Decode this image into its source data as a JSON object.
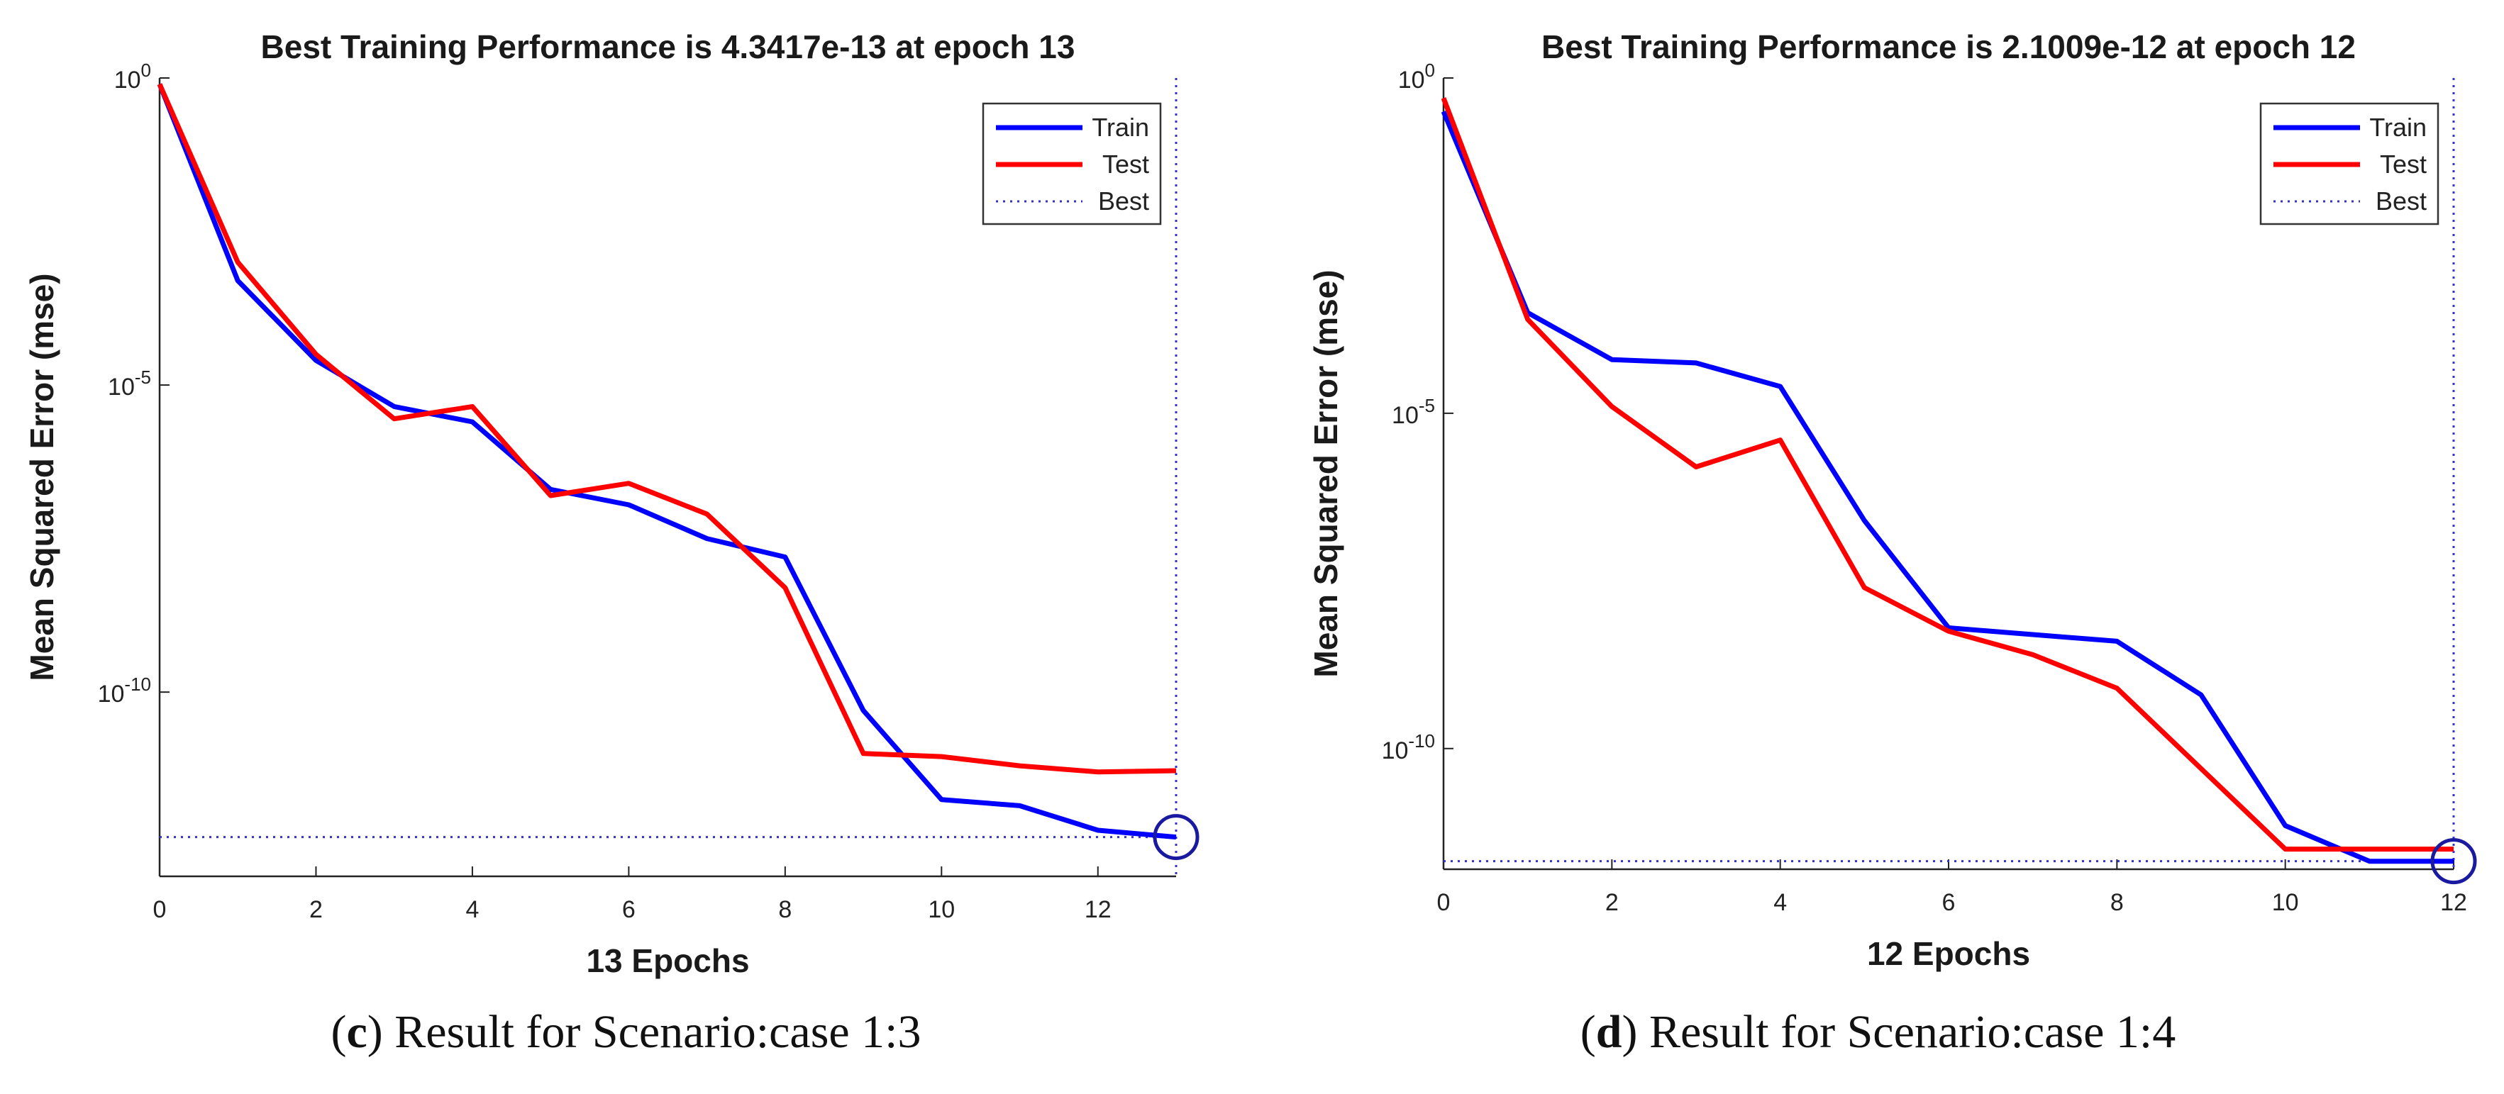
{
  "chart_data": [
    {
      "type": "line",
      "id": "c",
      "title": "Best Training Performance is 4.3417e-13 at epoch 13",
      "xlabel": "13 Epochs",
      "ylabel": "Mean Squared Error  (mse)",
      "yscale": "log",
      "xlim": [
        0,
        13
      ],
      "ylim_log10": [
        -13,
        0
      ],
      "xticks": [
        0,
        2,
        4,
        6,
        8,
        10,
        12
      ],
      "yticks": [
        {
          "label_base": "10",
          "label_exp": "0",
          "log10": 0
        },
        {
          "label_base": "10",
          "label_exp": "-5",
          "log10": -5
        },
        {
          "label_base": "10",
          "label_exp": "-10",
          "log10": -10
        }
      ],
      "series": [
        {
          "name": "Train",
          "color": "#0000ff",
          "x": [
            0,
            1,
            2,
            3,
            4,
            5,
            6,
            7,
            8,
            9,
            10,
            11,
            12,
            13
          ],
          "log10_values": [
            -0.1,
            -3.3,
            -4.6,
            -5.35,
            -5.6,
            -6.7,
            -6.95,
            -7.5,
            -7.8,
            -10.3,
            -11.75,
            -11.85,
            -12.25,
            -12.36
          ]
        },
        {
          "name": "Test",
          "color": "#ff0000",
          "x": [
            0,
            1,
            2,
            3,
            4,
            5,
            6,
            7,
            8,
            9,
            10,
            11,
            12,
            13
          ],
          "log10_values": [
            -0.1,
            -3.0,
            -4.5,
            -5.55,
            -5.35,
            -6.8,
            -6.6,
            -7.1,
            -8.3,
            -11.0,
            -11.05,
            -11.2,
            -11.3,
            -11.28
          ]
        },
        {
          "name": "Best",
          "color": "#3333cc",
          "style": "dotted",
          "best_epoch": 13,
          "best_log10": -12.36
        }
      ],
      "legend": {
        "entries": [
          "Train",
          "Test",
          "Best"
        ],
        "placement": "top-right"
      },
      "caption": {
        "letter": "c",
        "text": ") Result for Scenario:case 1:3"
      }
    },
    {
      "type": "line",
      "id": "d",
      "title": "Best Training Performance is 2.1009e-12 at epoch 12",
      "xlabel": "12 Epochs",
      "ylabel": "Mean Squared Error  (mse)",
      "yscale": "log",
      "xlim": [
        0,
        12
      ],
      "ylim_log10": [
        -11.8,
        0
      ],
      "xticks": [
        0,
        2,
        4,
        6,
        8,
        10,
        12
      ],
      "yticks": [
        {
          "label_base": "10",
          "label_exp": "0",
          "log10": 0
        },
        {
          "label_base": "10",
          "label_exp": "-5",
          "log10": -5
        },
        {
          "label_base": "10",
          "label_exp": "-10",
          "log10": -10
        }
      ],
      "series": [
        {
          "name": "Train",
          "color": "#0000ff",
          "x": [
            0,
            1,
            2,
            3,
            4,
            5,
            6,
            7,
            8,
            9,
            10,
            11,
            12
          ],
          "log10_values": [
            -0.5,
            -3.5,
            -4.2,
            -4.25,
            -4.6,
            -6.6,
            -8.2,
            -8.3,
            -8.4,
            -9.2,
            -11.15,
            -11.68,
            -11.68
          ]
        },
        {
          "name": "Test",
          "color": "#ff0000",
          "x": [
            0,
            1,
            2,
            3,
            4,
            5,
            6,
            7,
            8,
            9,
            10,
            11,
            12
          ],
          "log10_values": [
            -0.3,
            -3.6,
            -4.9,
            -5.8,
            -5.4,
            -7.6,
            -8.25,
            -8.6,
            -9.1,
            -10.3,
            -11.5,
            -11.5,
            -11.5
          ]
        },
        {
          "name": "Best",
          "color": "#3333cc",
          "style": "dotted",
          "best_epoch": 12,
          "best_log10": -11.68
        }
      ],
      "legend": {
        "entries": [
          "Train",
          "Test",
          "Best"
        ],
        "placement": "top-right"
      },
      "caption": {
        "letter": "d",
        "text": ") Result for Scenario:case 1:4"
      }
    }
  ]
}
